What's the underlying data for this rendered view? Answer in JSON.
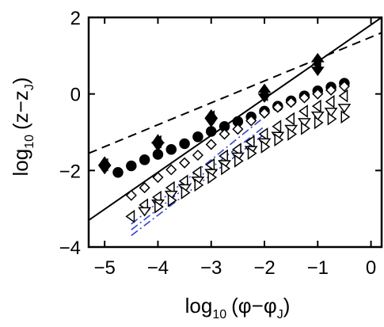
{
  "chart_data": {
    "type": "scatter",
    "title": "",
    "xlabel": {
      "prefix": "log",
      "base": "10",
      "body": "(φ−φ",
      "sub": "J",
      "end": ")"
    },
    "ylabel": {
      "prefix": "log",
      "base": "10",
      "body": "(z−z",
      "sub": "J",
      "end": ")"
    },
    "xlim": [
      -5.3,
      0.2
    ],
    "ylim": [
      -4,
      2
    ],
    "xticks": [
      -5,
      -4,
      -3,
      -2,
      -1,
      0
    ],
    "yticks": [
      -4,
      -2,
      0,
      2
    ],
    "xtick_labels": [
      "−5",
      "−4",
      "−3",
      "−2",
      "−1",
      "0"
    ],
    "ytick_labels": [
      "−4",
      "−2",
      "0",
      "2"
    ],
    "grid": false,
    "legend": "none",
    "series": [
      {
        "marker": "filled-up-triangle",
        "x": [
          -5,
          -4,
          -3,
          -2,
          -1
        ],
        "y": [
          -1.78,
          -1.2,
          -0.55,
          0.12,
          0.92
        ]
      },
      {
        "marker": "filled-down-triangle",
        "x": [
          -5,
          -4,
          -3,
          -2,
          -1
        ],
        "y": [
          -1.95,
          -1.35,
          -0.72,
          -0.08,
          0.62
        ]
      },
      {
        "marker": "filled-left-triangle",
        "x": [
          -5,
          -4,
          -3,
          -2,
          -1
        ],
        "y": [
          -1.85,
          -1.25,
          -0.6,
          -0.02,
          0.78
        ]
      },
      {
        "marker": "filled-circle",
        "x": [
          -4.75,
          -4.5,
          -4.25,
          -4,
          -3.75,
          -3.5,
          -3.25,
          -3,
          -2.75,
          -2.5,
          -2.25,
          -2,
          -1.75,
          -1.5,
          -1.25,
          -1,
          -0.75,
          -0.5
        ],
        "y": [
          -2.05,
          -1.88,
          -1.72,
          -1.58,
          -1.45,
          -1.3,
          -1.12,
          -0.98,
          -0.85,
          -0.72,
          -0.6,
          -0.45,
          -0.32,
          -0.18,
          -0.05,
          0.08,
          0.18,
          0.28
        ]
      },
      {
        "marker": "open-diamond",
        "x": [
          -4.5,
          -4.25,
          -4,
          -3.75,
          -3.5,
          -3.25,
          -3,
          -2.75,
          -2.5,
          -2.25,
          -2,
          -1.75,
          -1.5,
          -1.25,
          -1,
          -0.75,
          -0.5
        ],
        "y": [
          -2.65,
          -2.45,
          -2.18,
          -1.98,
          -1.8,
          -1.6,
          -1.32,
          -1.05,
          -0.92,
          -0.7,
          -0.5,
          -0.35,
          -0.22,
          -0.1,
          0.0,
          0.1,
          0.2
        ]
      },
      {
        "marker": "open-left-triangle",
        "x": [
          -4.5,
          -4.25,
          -4,
          -3.75,
          -3.5,
          -3.25,
          -3,
          -2.75,
          -2.5,
          -2.25,
          -2,
          -1.75,
          -1.5,
          -1.25,
          -1,
          -0.75,
          -0.5
        ],
        "y": [
          -3.2,
          -2.9,
          -2.7,
          -2.45,
          -2.28,
          -2.05,
          -1.85,
          -1.62,
          -1.45,
          -1.25,
          -1.05,
          -0.85,
          -0.65,
          -0.45,
          -0.32,
          -0.2,
          -0.05
        ]
      },
      {
        "marker": "open-down-triangle",
        "x": [
          -4.25,
          -4,
          -3.75,
          -3.5,
          -3.25,
          -3,
          -2.75,
          -2.5,
          -2.25,
          -2,
          -1.75,
          -1.5,
          -1.25,
          -1,
          -0.75,
          -0.5
        ],
        "y": [
          -3.05,
          -2.85,
          -2.62,
          -2.45,
          -2.25,
          -2.05,
          -1.82,
          -1.62,
          -1.45,
          -1.25,
          -1.08,
          -0.9,
          -0.72,
          -0.55,
          -0.45,
          -0.35
        ]
      },
      {
        "marker": "open-right-triangle",
        "x": [
          -4,
          -3.75,
          -3.5,
          -3.25,
          -3,
          -2.75,
          -2.5,
          -2.25,
          -2,
          -1.75,
          -1.5,
          -1.25,
          -1,
          -0.75,
          -0.5
        ],
        "y": [
          -2.95,
          -2.78,
          -2.58,
          -2.38,
          -2.18,
          -1.95,
          -1.75,
          -1.55,
          -1.38,
          -1.2,
          -1.05,
          -0.9,
          -0.75,
          -0.65,
          -0.6
        ]
      }
    ],
    "fit_lines": [
      {
        "style": "dashed",
        "color": "#000000",
        "x": [
          -5.3,
          0.2
        ],
        "y": [
          -1.55,
          1.6
        ]
      },
      {
        "style": "solid",
        "color": "#000000",
        "x": [
          -5.3,
          0.2
        ],
        "y": [
          -3.3,
          2.0
        ]
      },
      {
        "style": "dashdot",
        "color": "#3344cc",
        "x": [
          -4.5,
          -2
        ],
        "y": [
          -3.4,
          -0.6
        ]
      },
      {
        "style": "dashdot",
        "color": "#3344cc",
        "x": [
          -4.5,
          -2
        ],
        "y": [
          -3.55,
          -0.85
        ]
      },
      {
        "style": "dashdot",
        "color": "#3344cc",
        "x": [
          -4.5,
          -2
        ],
        "y": [
          -3.7,
          -1.05
        ]
      }
    ]
  }
}
